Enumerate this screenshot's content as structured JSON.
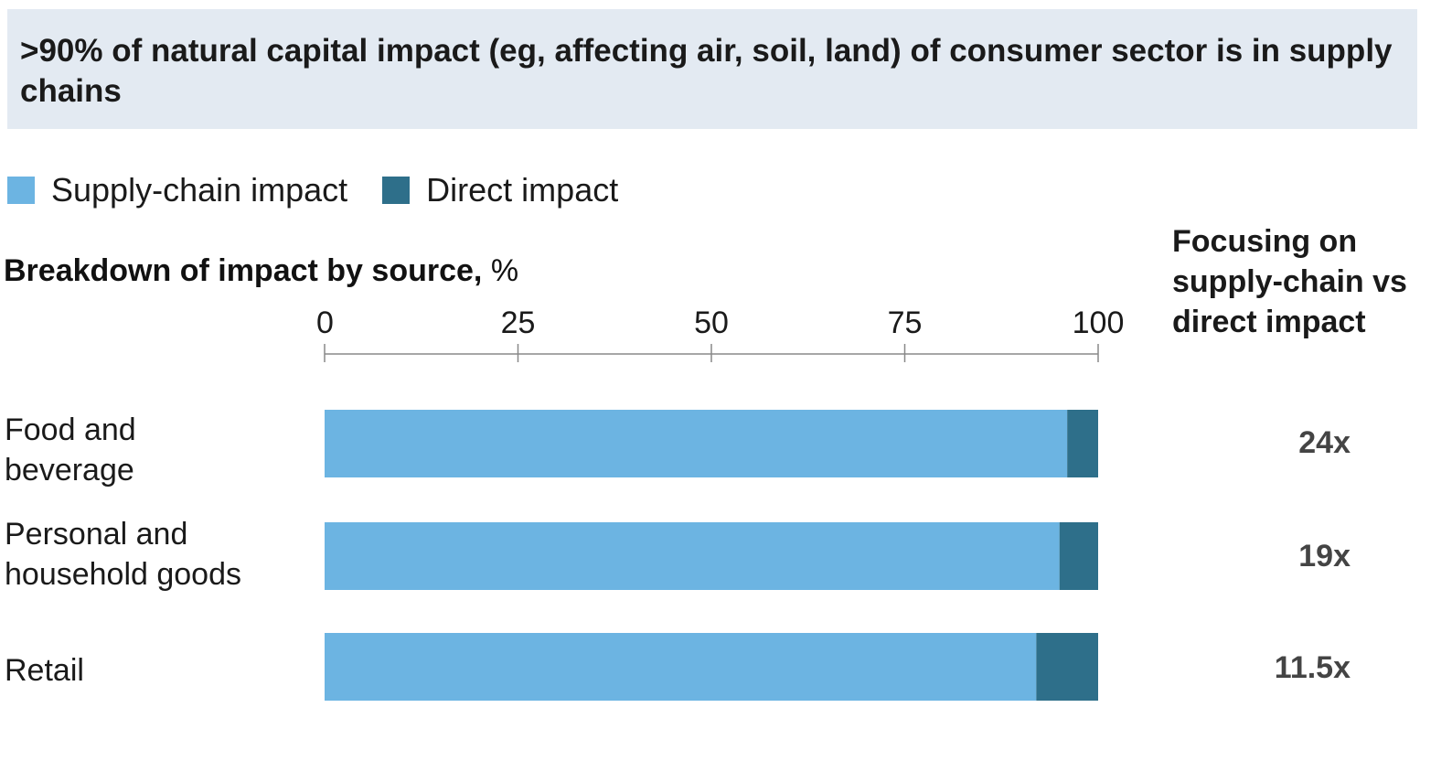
{
  "title": ">90% of natural capital impact (eg, affecting air, soil, land) of consumer sector is in supply chains",
  "legend": [
    {
      "label": "Supply-chain impact",
      "color": "#6cb4e2"
    },
    {
      "label": "Direct impact",
      "color": "#2e6f8a"
    }
  ],
  "subtitle": {
    "bold": "Breakdown of impact by source,",
    "unit": "%"
  },
  "right_header": "Focusing on supply-chain vs direct impact",
  "rows": [
    {
      "label_lines": [
        "Food and",
        "beverage"
      ],
      "ratio": "24x"
    },
    {
      "label_lines": [
        "Personal and",
        "household goods"
      ],
      "ratio": "19x"
    },
    {
      "label_lines": [
        "Retail"
      ],
      "ratio": "11.5x"
    }
  ],
  "chart_data": {
    "type": "bar",
    "orientation": "horizontal",
    "stacked": true,
    "categories": [
      "Food and beverage",
      "Personal and household goods",
      "Retail"
    ],
    "series": [
      {
        "name": "Supply-chain impact",
        "color": "#6cb4e2",
        "values": [
          96,
          95,
          92
        ]
      },
      {
        "name": "Direct impact",
        "color": "#2e6f8a",
        "values": [
          4,
          5,
          8
        ]
      }
    ],
    "xlim": [
      0,
      100
    ],
    "xticks": [
      0,
      25,
      50,
      75,
      100
    ],
    "grid": false,
    "legend_position": "top-left"
  }
}
